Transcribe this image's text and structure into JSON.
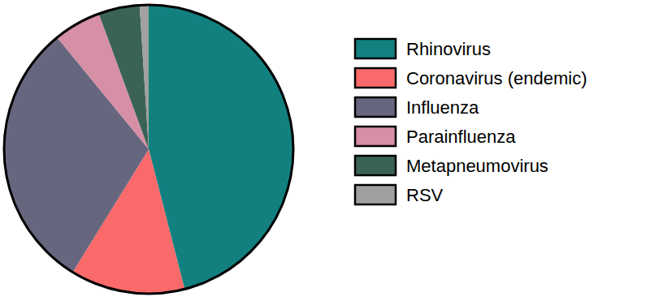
{
  "chart_data": {
    "type": "pie",
    "categories": [
      "Rhinovirus",
      "Coronavirus (endemic)",
      "Influenza",
      "Parainfluenza",
      "Metapneumovirus",
      "RSV"
    ],
    "values": [
      46,
      12.8,
      30.3,
      5.3,
      4.6,
      1.0
    ],
    "colors": [
      "#138080",
      "#fb6a6a",
      "#67667f",
      "#d68fa5",
      "#3a6355",
      "#a0a0a0"
    ],
    "legend": "right"
  }
}
